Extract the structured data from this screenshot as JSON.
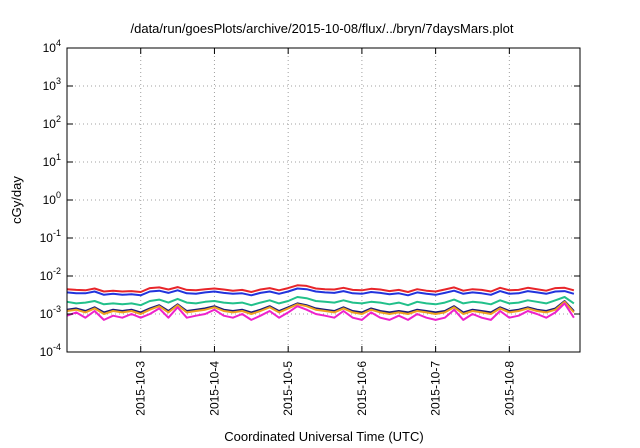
{
  "chart_data": {
    "type": "line",
    "title": "/data/run/goesPlots/archive/2015-10-08/flux/../bryn/7daysMars.plot",
    "xlabel": "Coordinated Universal Time (UTC)",
    "ylabel": "cGy/day",
    "yscale": "log",
    "ylim": [
      0.0001,
      10000
    ],
    "xlim": [
      "2015-10-02T00:00",
      "2015-10-08T23:00"
    ],
    "grid": true,
    "legend": "none",
    "x_ticks": [
      {
        "label": "2015-10-3",
        "value": "2015-10-03T00:00"
      },
      {
        "label": "2015-10-4",
        "value": "2015-10-04T00:00"
      },
      {
        "label": "2015-10-5",
        "value": "2015-10-05T00:00"
      },
      {
        "label": "2015-10-6",
        "value": "2015-10-06T00:00"
      },
      {
        "label": "2015-10-7",
        "value": "2015-10-07T00:00"
      },
      {
        "label": "2015-10-8",
        "value": "2015-10-08T00:00"
      }
    ],
    "y_ticks": [
      {
        "base": "10",
        "exp": "-4",
        "value": 0.0001
      },
      {
        "base": "10",
        "exp": "-3",
        "value": 0.001
      },
      {
        "base": "10",
        "exp": "-2",
        "value": 0.01
      },
      {
        "base": "10",
        "exp": "-1",
        "value": 0.1
      },
      {
        "base": "10",
        "exp": "0",
        "value": 1
      },
      {
        "base": "10",
        "exp": "1",
        "value": 10
      },
      {
        "base": "10",
        "exp": "2",
        "value": 100
      },
      {
        "base": "10",
        "exp": "3",
        "value": 1000
      },
      {
        "base": "10",
        "exp": "4",
        "value": 10000
      }
    ],
    "x": [
      "2015-10-02T00:00",
      "2015-10-02T03:00",
      "2015-10-02T06:00",
      "2015-10-02T09:00",
      "2015-10-02T12:00",
      "2015-10-02T15:00",
      "2015-10-02T18:00",
      "2015-10-02T21:00",
      "2015-10-03T00:00",
      "2015-10-03T03:00",
      "2015-10-03T06:00",
      "2015-10-03T09:00",
      "2015-10-03T12:00",
      "2015-10-03T15:00",
      "2015-10-03T18:00",
      "2015-10-03T21:00",
      "2015-10-04T00:00",
      "2015-10-04T03:00",
      "2015-10-04T06:00",
      "2015-10-04T09:00",
      "2015-10-04T12:00",
      "2015-10-04T15:00",
      "2015-10-04T18:00",
      "2015-10-04T21:00",
      "2015-10-05T00:00",
      "2015-10-05T03:00",
      "2015-10-05T06:00",
      "2015-10-05T09:00",
      "2015-10-05T12:00",
      "2015-10-05T15:00",
      "2015-10-05T18:00",
      "2015-10-05T21:00",
      "2015-10-06T00:00",
      "2015-10-06T03:00",
      "2015-10-06T06:00",
      "2015-10-06T09:00",
      "2015-10-06T12:00",
      "2015-10-06T15:00",
      "2015-10-06T18:00",
      "2015-10-06T21:00",
      "2015-10-07T00:00",
      "2015-10-07T03:00",
      "2015-10-07T06:00",
      "2015-10-07T09:00",
      "2015-10-07T12:00",
      "2015-10-07T15:00",
      "2015-10-07T18:00",
      "2015-10-07T21:00",
      "2015-10-08T00:00",
      "2015-10-08T03:00",
      "2015-10-08T06:00",
      "2015-10-08T09:00",
      "2015-10-08T12:00",
      "2015-10-08T15:00",
      "2015-10-08T18:00",
      "2015-10-08T21:00"
    ],
    "series": [
      {
        "color": "#e8252a",
        "values": [
          0.0045,
          0.0043,
          0.0042,
          0.0047,
          0.0039,
          0.0041,
          0.0039,
          0.004,
          0.0038,
          0.0048,
          0.005,
          0.0044,
          0.0051,
          0.0043,
          0.0042,
          0.0045,
          0.0047,
          0.0044,
          0.0041,
          0.0043,
          0.0038,
          0.0044,
          0.0048,
          0.0042,
          0.0048,
          0.0057,
          0.0055,
          0.0047,
          0.0045,
          0.0044,
          0.0049,
          0.0043,
          0.0042,
          0.0046,
          0.0044,
          0.004,
          0.0043,
          0.0038,
          0.0045,
          0.0041,
          0.0039,
          0.0044,
          0.005,
          0.0041,
          0.0045,
          0.0043,
          0.0039,
          0.0049,
          0.0042,
          0.0043,
          0.0049,
          0.0045,
          0.0041,
          0.0048,
          0.0049,
          0.0042
        ]
      },
      {
        "color": "#2233dd",
        "values": [
          0.0037,
          0.0035,
          0.0035,
          0.0039,
          0.0032,
          0.0034,
          0.0032,
          0.0033,
          0.0031,
          0.0039,
          0.0041,
          0.0036,
          0.0042,
          0.0035,
          0.0034,
          0.0037,
          0.0039,
          0.0036,
          0.0034,
          0.0035,
          0.0031,
          0.0036,
          0.0039,
          0.0034,
          0.0039,
          0.0047,
          0.0045,
          0.0039,
          0.0037,
          0.0036,
          0.004,
          0.0035,
          0.0034,
          0.0038,
          0.0036,
          0.0033,
          0.0035,
          0.0031,
          0.0037,
          0.0034,
          0.0032,
          0.0036,
          0.0041,
          0.0034,
          0.0037,
          0.0035,
          0.0032,
          0.004,
          0.0034,
          0.0035,
          0.004,
          0.0037,
          0.0034,
          0.0039,
          0.004,
          0.0034
        ]
      },
      {
        "color": "#22c08a",
        "values": [
          0.0021,
          0.0019,
          0.002,
          0.0022,
          0.0018,
          0.0019,
          0.0018,
          0.0019,
          0.0017,
          0.0022,
          0.0024,
          0.002,
          0.0025,
          0.002,
          0.0019,
          0.0021,
          0.0022,
          0.002,
          0.0019,
          0.002,
          0.0017,
          0.002,
          0.0023,
          0.0019,
          0.0022,
          0.0028,
          0.0026,
          0.0022,
          0.0021,
          0.002,
          0.0023,
          0.002,
          0.0019,
          0.0021,
          0.002,
          0.0018,
          0.002,
          0.0017,
          0.0021,
          0.0019,
          0.0018,
          0.002,
          0.0024,
          0.0019,
          0.0021,
          0.002,
          0.0018,
          0.0023,
          0.0019,
          0.002,
          0.0023,
          0.0021,
          0.0019,
          0.0023,
          0.0028,
          0.0019
        ]
      },
      {
        "color": "#1a1a7a",
        "values": [
          0.0013,
          0.0014,
          0.0012,
          0.0015,
          0.0011,
          0.0013,
          0.0012,
          0.0013,
          0.0011,
          0.0014,
          0.0017,
          0.0012,
          0.0018,
          0.0012,
          0.0013,
          0.0014,
          0.0016,
          0.0013,
          0.0012,
          0.0013,
          0.0011,
          0.0013,
          0.0016,
          0.0012,
          0.0015,
          0.0019,
          0.0017,
          0.0014,
          0.0013,
          0.0012,
          0.0015,
          0.0012,
          0.0011,
          0.0014,
          0.0012,
          0.0011,
          0.0012,
          0.0011,
          0.0013,
          0.0012,
          0.0011,
          0.0012,
          0.0016,
          0.0011,
          0.0013,
          0.0012,
          0.0011,
          0.0015,
          0.0012,
          0.0013,
          0.0015,
          0.0013,
          0.0012,
          0.0014,
          0.0022,
          0.0012
        ]
      },
      {
        "color": "#f0a020",
        "values": [
          0.0012,
          0.0013,
          0.0011,
          0.0014,
          0.001,
          0.0012,
          0.0011,
          0.0012,
          0.001,
          0.0013,
          0.0016,
          0.0011,
          0.0017,
          0.0011,
          0.0012,
          0.0013,
          0.0015,
          0.0012,
          0.0011,
          0.0012,
          0.001,
          0.0012,
          0.0015,
          0.0011,
          0.0014,
          0.0018,
          0.0016,
          0.0013,
          0.0012,
          0.0011,
          0.0014,
          0.0011,
          0.001,
          0.0013,
          0.0011,
          0.001,
          0.0011,
          0.001,
          0.0012,
          0.0011,
          0.001,
          0.0011,
          0.0015,
          0.001,
          0.0012,
          0.0011,
          0.001,
          0.0014,
          0.0011,
          0.0012,
          0.0014,
          0.0012,
          0.0011,
          0.0013,
          0.0021,
          0.0011
        ]
      },
      {
        "color": "#ee22cc",
        "values": [
          0.0009,
          0.0011,
          0.0008,
          0.0012,
          0.0007,
          0.0009,
          0.0008,
          0.001,
          0.0008,
          0.001,
          0.0014,
          0.0008,
          0.0015,
          0.0008,
          0.0009,
          0.001,
          0.0013,
          0.0009,
          0.0008,
          0.001,
          0.0007,
          0.0009,
          0.0012,
          0.0008,
          0.0011,
          0.0016,
          0.0013,
          0.001,
          0.0009,
          0.0008,
          0.0012,
          0.0008,
          0.0007,
          0.0011,
          0.0008,
          0.0007,
          0.0009,
          0.0007,
          0.001,
          0.0008,
          0.0007,
          0.0008,
          0.0013,
          0.0007,
          0.001,
          0.0008,
          0.0007,
          0.0012,
          0.0008,
          0.0009,
          0.0012,
          0.001,
          0.0008,
          0.0011,
          0.0019,
          0.0008
        ]
      }
    ]
  }
}
